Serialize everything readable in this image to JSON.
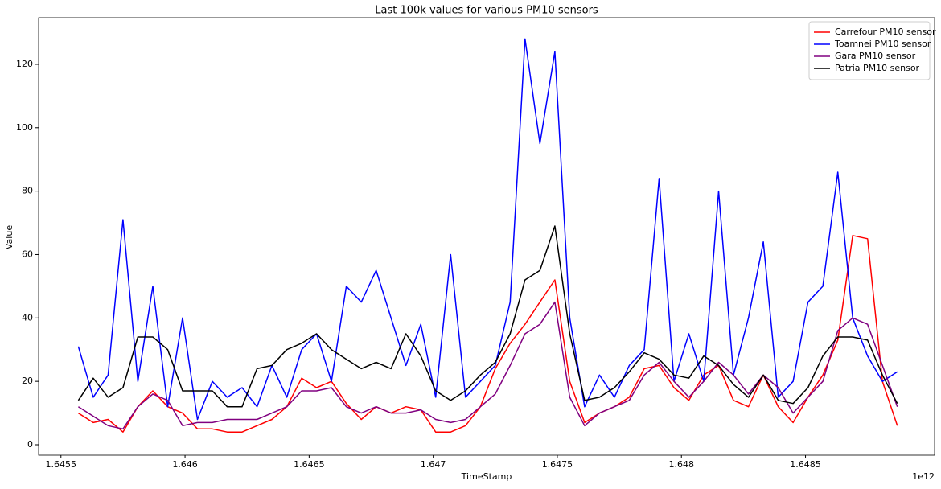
{
  "chart_data": {
    "type": "line",
    "title": "Last 100k values for various PM10 sensors",
    "x_label": "TimeStamp",
    "y_label": "Value",
    "x_offset_text": "1e12",
    "x": [
      1.64557,
      1.64563,
      1.64569,
      1.64575,
      1.64581,
      1.64587,
      1.64593,
      1.64599,
      1.64605,
      1.64611,
      1.64617,
      1.64623,
      1.64629,
      1.64635,
      1.64641,
      1.64647,
      1.64653,
      1.64659,
      1.64665,
      1.64671,
      1.64677,
      1.64683,
      1.64689,
      1.64695,
      1.64701,
      1.64707,
      1.64713,
      1.64719,
      1.64725,
      1.64731,
      1.64737,
      1.64743,
      1.64749,
      1.64755,
      1.64761,
      1.64767,
      1.64773,
      1.64779,
      1.64785,
      1.64791,
      1.64797,
      1.64803,
      1.64809,
      1.64815,
      1.64821,
      1.64827,
      1.64833,
      1.64839,
      1.64845,
      1.64851,
      1.64857,
      1.64863,
      1.64869,
      1.64875,
      1.64881,
      1.64887
    ],
    "series": [
      {
        "name": "Carrefour PM10 sensor",
        "color": "#ff0000",
        "values": [
          10,
          7,
          8,
          4,
          12,
          17,
          12,
          10,
          5,
          5,
          4,
          4,
          6,
          8,
          12,
          21,
          18,
          20,
          13,
          8,
          12,
          10,
          12,
          11,
          4,
          4,
          6,
          12,
          24,
          32,
          38,
          45,
          52,
          20,
          7,
          10,
          12,
          15,
          24,
          25,
          18,
          14,
          22,
          25,
          14,
          12,
          22,
          12,
          7,
          15,
          22,
          33,
          66,
          65,
          20,
          6
        ]
      },
      {
        "name": "Toamnei PM10 sensor",
        "color": "#0000ff",
        "values": [
          31,
          15,
          22,
          71,
          20,
          50,
          12,
          40,
          8,
          20,
          15,
          18,
          12,
          25,
          15,
          30,
          35,
          20,
          50,
          45,
          55,
          40,
          25,
          38,
          15,
          60,
          15,
          20,
          25,
          45,
          128,
          95,
          124,
          40,
          12,
          22,
          15,
          25,
          30,
          84,
          20,
          35,
          20,
          80,
          22,
          40,
          64,
          15,
          20,
          45,
          50,
          86,
          40,
          28,
          20,
          23
        ]
      },
      {
        "name": "Gara PM10 sensor",
        "color": "#800080",
        "values": [
          12,
          9,
          6,
          5,
          12,
          16,
          14,
          6,
          7,
          7,
          8,
          8,
          8,
          10,
          12,
          17,
          17,
          18,
          12,
          10,
          12,
          10,
          10,
          11,
          8,
          7,
          8,
          12,
          16,
          25,
          35,
          38,
          45,
          15,
          6,
          10,
          12,
          14,
          22,
          26,
          20,
          15,
          20,
          26,
          22,
          16,
          22,
          18,
          10,
          15,
          20,
          36,
          40,
          38,
          25,
          12
        ]
      },
      {
        "name": "Patria PM10 sensor",
        "color": "#000000",
        "values": [
          14,
          21,
          15,
          18,
          34,
          34,
          30,
          17,
          17,
          17,
          12,
          12,
          24,
          25,
          30,
          32,
          35,
          30,
          27,
          24,
          26,
          24,
          35,
          28,
          17,
          14,
          17,
          22,
          26,
          35,
          52,
          55,
          69,
          35,
          14,
          15,
          18,
          23,
          29,
          27,
          22,
          21,
          28,
          25,
          19,
          15,
          22,
          14,
          13,
          18,
          28,
          34,
          34,
          33,
          22,
          13
        ]
      }
    ],
    "xlim": [
      1.64541,
      1.64902
    ],
    "xticks": [
      1.6455,
      1.646,
      1.6465,
      1.647,
      1.6475,
      1.648,
      1.6485
    ],
    "ylim": [
      -3.3,
      134.7
    ],
    "yticks": [
      0,
      20,
      40,
      60,
      80,
      100,
      120
    ],
    "legend": "upper right"
  }
}
